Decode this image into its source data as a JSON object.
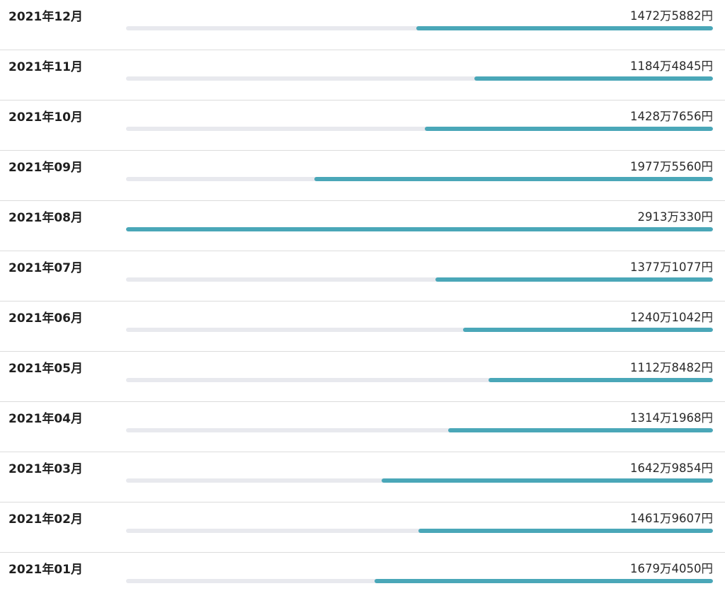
{
  "chart_data": {
    "type": "bar",
    "orientation": "horizontal",
    "title": "",
    "xlabel": "",
    "ylabel": "",
    "unit": "円",
    "xlim": [
      0,
      29130330
    ],
    "categories": [
      "2021年12月",
      "2021年11月",
      "2021年10月",
      "2021年09月",
      "2021年08月",
      "2021年07月",
      "2021年06月",
      "2021年05月",
      "2021年04月",
      "2021年03月",
      "2021年02月",
      "2021年01月"
    ],
    "labels": [
      "1472万5882円",
      "1184万4845円",
      "1428万7656円",
      "1977万5560円",
      "2913万330円",
      "1377万1077円",
      "1240万1042円",
      "1112万8482円",
      "1314万1968円",
      "1642万9854円",
      "1461万9607円",
      "1679万4050円"
    ],
    "values": [
      14725882,
      11844845,
      14287656,
      19775560,
      29130330,
      13771077,
      12401042,
      11128482,
      13141968,
      16429854,
      14619607,
      16794050
    ],
    "colors": {
      "bar": "#4aa7b8",
      "track": "#e8e9ee",
      "divider": "#dcdcdc"
    }
  }
}
